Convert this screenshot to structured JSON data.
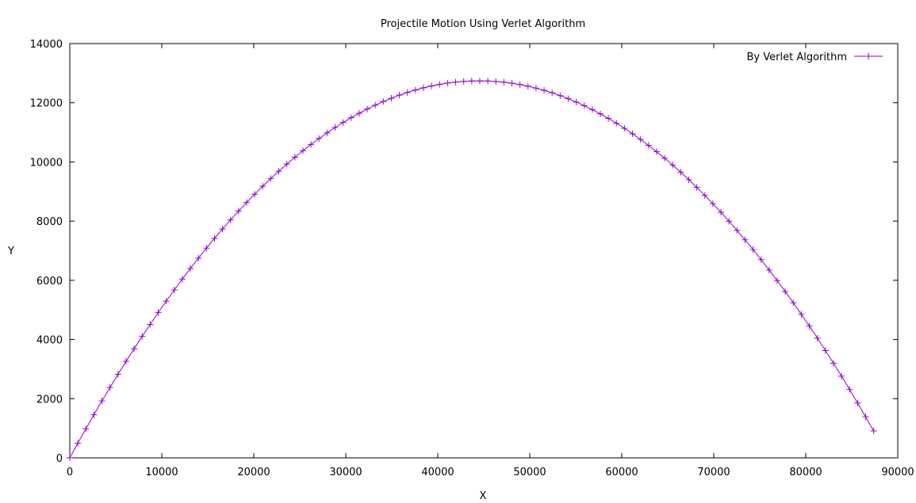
{
  "chart_data": {
    "type": "line",
    "title": "Projectile Motion Using Verlet Algorithm",
    "xlabel": "X",
    "ylabel": "Y",
    "xlim": [
      0,
      90000
    ],
    "ylim": [
      0,
      14000
    ],
    "x_ticks": [
      0,
      10000,
      20000,
      30000,
      40000,
      50000,
      60000,
      70000,
      80000,
      90000
    ],
    "y_ticks": [
      0,
      2000,
      4000,
      6000,
      8000,
      10000,
      12000,
      14000
    ],
    "grid": false,
    "legend_position": "top-right",
    "series": [
      {
        "name": "By Verlet Algorithm",
        "color": "#9400d3",
        "marker": "plus",
        "model": {
          "x_step": 873.8,
          "point_count": 101,
          "y_peak": 12740,
          "x_at_peak": 44500,
          "x_range": 89000
        }
      }
    ]
  }
}
